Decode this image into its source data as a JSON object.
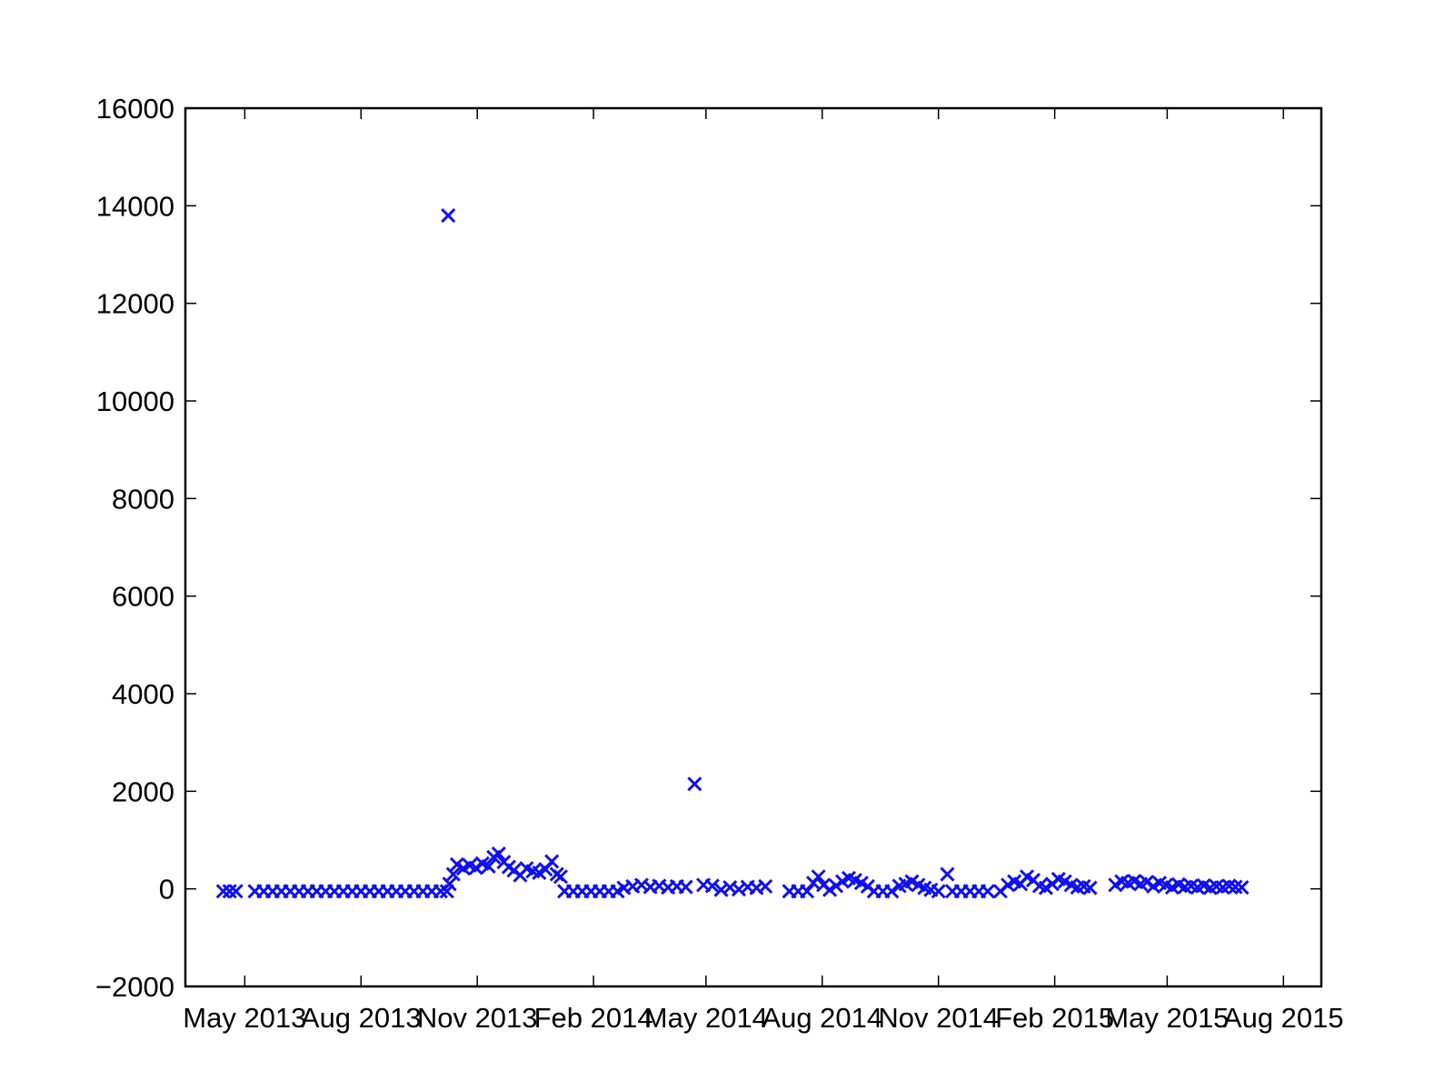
{
  "chart_data": {
    "type": "scatter",
    "title": "",
    "xlabel": "",
    "ylabel": "",
    "x_axis_type": "date",
    "xlim": [
      "2013-03-15",
      "2015-08-31"
    ],
    "ylim": [
      -2000,
      16000
    ],
    "x_ticks": [
      {
        "label": "May 2013",
        "date": "2013-05-01"
      },
      {
        "label": "Aug 2013",
        "date": "2013-08-01"
      },
      {
        "label": "Nov 2013",
        "date": "2013-11-01"
      },
      {
        "label": "Feb 2014",
        "date": "2014-02-01"
      },
      {
        "label": "May 2014",
        "date": "2014-05-01"
      },
      {
        "label": "Aug 2014",
        "date": "2014-08-01"
      },
      {
        "label": "Nov 2014",
        "date": "2014-11-01"
      },
      {
        "label": "Feb 2015",
        "date": "2015-02-01"
      },
      {
        "label": "May 2015",
        "date": "2015-05-01"
      },
      {
        "label": "Aug 2015",
        "date": "2015-08-01"
      }
    ],
    "y_ticks": [
      {
        "label": "16000",
        "value": 16000
      },
      {
        "label": "14000",
        "value": 14000
      },
      {
        "label": "12000",
        "value": 12000
      },
      {
        "label": "10000",
        "value": 10000
      },
      {
        "label": "8000",
        "value": 8000
      },
      {
        "label": "6000",
        "value": 6000
      },
      {
        "label": "4000",
        "value": 4000
      },
      {
        "label": "2000",
        "value": 2000
      },
      {
        "label": "0",
        "value": 0
      },
      {
        "label": "−2000",
        "value": -2000
      }
    ],
    "grid": false,
    "marker": "x",
    "marker_color": "#1010ee",
    "series": [
      {
        "points": [
          [
            "2013-04-14",
            -50
          ],
          [
            "2013-04-19",
            -50
          ],
          [
            "2013-04-24",
            -50
          ],
          [
            "2013-05-09",
            -50
          ],
          [
            "2013-05-16",
            -50
          ],
          [
            "2013-05-23",
            -50
          ],
          [
            "2013-05-30",
            -50
          ],
          [
            "2013-06-06",
            -50
          ],
          [
            "2013-06-13",
            -50
          ],
          [
            "2013-06-20",
            -50
          ],
          [
            "2013-06-27",
            -50
          ],
          [
            "2013-07-04",
            -50
          ],
          [
            "2013-07-11",
            -50
          ],
          [
            "2013-07-18",
            -50
          ],
          [
            "2013-07-25",
            -50
          ],
          [
            "2013-08-01",
            -50
          ],
          [
            "2013-08-08",
            -50
          ],
          [
            "2013-08-15",
            -50
          ],
          [
            "2013-08-22",
            -50
          ],
          [
            "2013-08-29",
            -50
          ],
          [
            "2013-09-05",
            -50
          ],
          [
            "2013-09-12",
            -50
          ],
          [
            "2013-09-19",
            -50
          ],
          [
            "2013-09-26",
            -50
          ],
          [
            "2013-10-03",
            -50
          ],
          [
            "2013-10-08",
            -50
          ],
          [
            "2013-10-09",
            13800
          ],
          [
            "2013-10-10",
            100
          ],
          [
            "2013-10-13",
            300
          ],
          [
            "2013-10-16",
            500
          ],
          [
            "2013-10-21",
            420
          ],
          [
            "2013-10-26",
            480
          ],
          [
            "2013-10-31",
            430
          ],
          [
            "2013-11-05",
            520
          ],
          [
            "2013-11-10",
            460
          ],
          [
            "2013-11-14",
            650
          ],
          [
            "2013-11-18",
            720
          ],
          [
            "2013-11-22",
            550
          ],
          [
            "2013-11-26",
            450
          ],
          [
            "2013-11-30",
            380
          ],
          [
            "2013-12-05",
            280
          ],
          [
            "2013-12-10",
            420
          ],
          [
            "2013-12-15",
            360
          ],
          [
            "2013-12-20",
            330
          ],
          [
            "2013-12-25",
            400
          ],
          [
            "2013-12-30",
            560
          ],
          [
            "2014-01-03",
            300
          ],
          [
            "2014-01-06",
            250
          ],
          [
            "2014-01-09",
            -50
          ],
          [
            "2014-01-16",
            -50
          ],
          [
            "2014-01-23",
            -50
          ],
          [
            "2014-01-30",
            -50
          ],
          [
            "2014-02-06",
            -50
          ],
          [
            "2014-02-13",
            -50
          ],
          [
            "2014-02-20",
            -50
          ],
          [
            "2014-02-25",
            20
          ],
          [
            "2014-03-04",
            50
          ],
          [
            "2014-03-11",
            80
          ],
          [
            "2014-03-18",
            40
          ],
          [
            "2014-03-25",
            60
          ],
          [
            "2014-04-01",
            30
          ],
          [
            "2014-04-08",
            50
          ],
          [
            "2014-04-15",
            40
          ],
          [
            "2014-04-22",
            2150
          ],
          [
            "2014-04-29",
            80
          ],
          [
            "2014-05-06",
            60
          ],
          [
            "2014-05-13",
            -20
          ],
          [
            "2014-05-20",
            30
          ],
          [
            "2014-05-27",
            -10
          ],
          [
            "2014-06-03",
            40
          ],
          [
            "2014-06-10",
            20
          ],
          [
            "2014-06-17",
            50
          ],
          [
            "2014-07-06",
            -50
          ],
          [
            "2014-07-13",
            -50
          ],
          [
            "2014-07-20",
            -50
          ],
          [
            "2014-07-25",
            120
          ],
          [
            "2014-07-29",
            250
          ],
          [
            "2014-08-02",
            80
          ],
          [
            "2014-08-07",
            -20
          ],
          [
            "2014-08-12",
            60
          ],
          [
            "2014-08-17",
            150
          ],
          [
            "2014-08-22",
            220
          ],
          [
            "2014-08-27",
            180
          ],
          [
            "2014-09-01",
            120
          ],
          [
            "2014-09-06",
            50
          ],
          [
            "2014-09-11",
            -50
          ],
          [
            "2014-09-18",
            -50
          ],
          [
            "2014-09-25",
            -50
          ],
          [
            "2014-10-01",
            60
          ],
          [
            "2014-10-06",
            100
          ],
          [
            "2014-10-11",
            150
          ],
          [
            "2014-10-16",
            80
          ],
          [
            "2014-10-21",
            20
          ],
          [
            "2014-10-26",
            -20
          ],
          [
            "2014-11-08",
            300
          ],
          [
            "2014-11-01",
            -50
          ],
          [
            "2014-11-12",
            -50
          ],
          [
            "2014-11-19",
            -50
          ],
          [
            "2014-11-26",
            -50
          ],
          [
            "2014-12-03",
            -50
          ],
          [
            "2014-12-10",
            -50
          ],
          [
            "2014-12-20",
            -50
          ],
          [
            "2014-12-26",
            80
          ],
          [
            "2014-12-31",
            150
          ],
          [
            "2015-01-05",
            100
          ],
          [
            "2015-01-10",
            250
          ],
          [
            "2015-01-15",
            180
          ],
          [
            "2015-01-20",
            60
          ],
          [
            "2015-01-25",
            20
          ],
          [
            "2015-01-30",
            100
          ],
          [
            "2015-02-04",
            200
          ],
          [
            "2015-02-09",
            150
          ],
          [
            "2015-02-14",
            80
          ],
          [
            "2015-02-19",
            30
          ],
          [
            "2015-02-24",
            50
          ],
          [
            "2015-03-01",
            20
          ],
          [
            "2015-03-21",
            80
          ],
          [
            "2015-03-26",
            150
          ],
          [
            "2015-03-31",
            120
          ],
          [
            "2015-04-05",
            160
          ],
          [
            "2015-04-10",
            100
          ],
          [
            "2015-04-15",
            140
          ],
          [
            "2015-04-20",
            50
          ],
          [
            "2015-04-25",
            120
          ],
          [
            "2015-04-30",
            80
          ],
          [
            "2015-05-05",
            30
          ],
          [
            "2015-05-10",
            90
          ],
          [
            "2015-05-15",
            40
          ],
          [
            "2015-05-20",
            60
          ],
          [
            "2015-05-25",
            30
          ],
          [
            "2015-05-30",
            70
          ],
          [
            "2015-06-04",
            20
          ],
          [
            "2015-06-09",
            50
          ],
          [
            "2015-06-14",
            30
          ],
          [
            "2015-06-19",
            60
          ],
          [
            "2015-06-24",
            40
          ],
          [
            "2015-06-29",
            30
          ]
        ]
      }
    ]
  }
}
